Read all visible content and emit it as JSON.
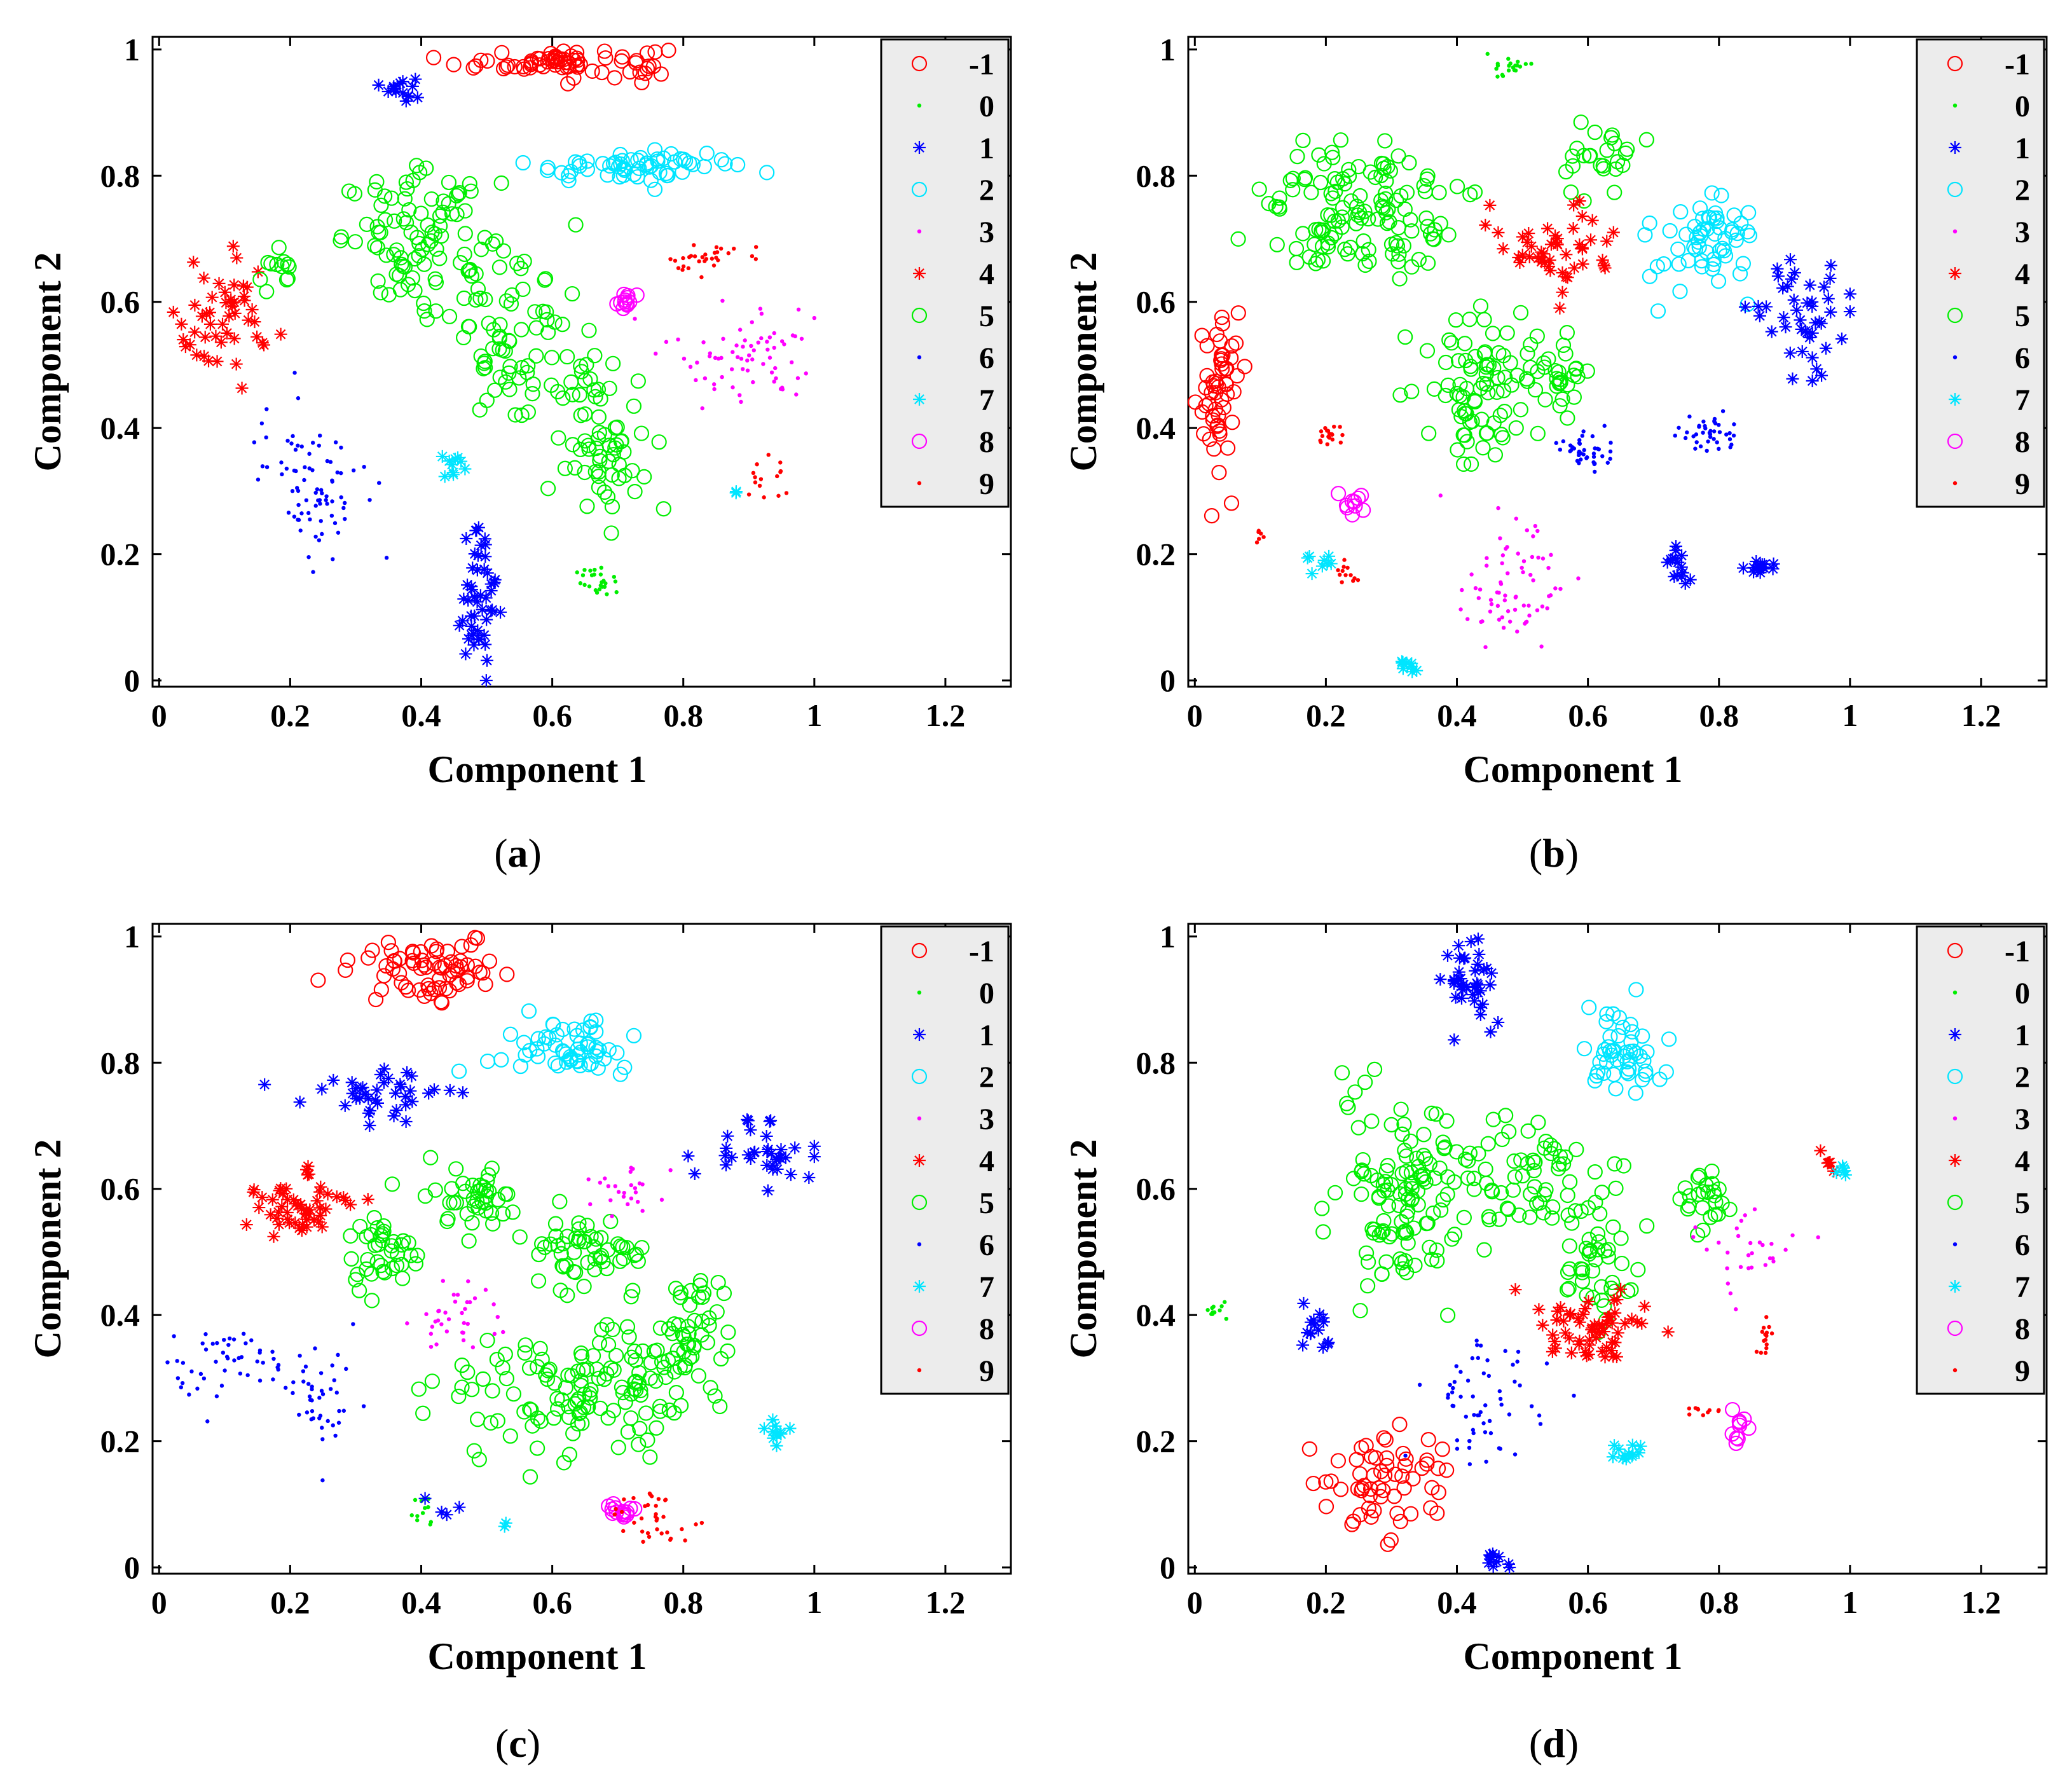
{
  "legend_colors": {
    "-1": "#ff0000",
    "0": "#00ee00",
    "1": "#0000ff",
    "2": "#00e5ff",
    "3": "#ff00ff",
    "4": "#ff0000",
    "5": "#00ee00",
    "6": "#0000ff",
    "7": "#00e5ff",
    "8": "#ff00ff",
    "9": "#ff0000"
  },
  "captions": [
    {
      "open": "(",
      "letter": "a",
      "close": ")"
    },
    {
      "open": "(",
      "letter": "b",
      "close": ")"
    },
    {
      "open": "(",
      "letter": "c",
      "close": ")"
    },
    {
      "open": "(",
      "letter": "d",
      "close": ")"
    }
  ],
  "chart_data": [
    {
      "type": "scatter",
      "panel": "a",
      "xlabel": "Component 1",
      "ylabel": "Component 2",
      "xlim": [
        -0.01,
        1.3
      ],
      "ylim": [
        -0.01,
        1.02
      ],
      "xticks": [
        "0",
        "0.2",
        "0.4",
        "0.6",
        "0.8",
        "1",
        "1.2"
      ],
      "xtick_values": [
        0,
        0.2,
        0.4,
        0.6,
        0.8,
        1.0,
        1.2
      ],
      "yticks": [
        "0",
        "0.2",
        "0.4",
        "0.6",
        "0.8",
        "1"
      ],
      "ytick_values": [
        0,
        0.2,
        0.4,
        0.6,
        0.8,
        1.0
      ],
      "legend": [
        "-1",
        "0",
        "1",
        "2",
        "3",
        "4",
        "5",
        "6",
        "7",
        "8",
        "9"
      ],
      "legend_position": "top-right",
      "clusters": [
        {
          "label": "-1",
          "cx": 0.62,
          "cy": 0.98,
          "sx": 0.08,
          "sy": 0.012,
          "n": 70
        },
        {
          "label": "1",
          "cx": 0.37,
          "cy": 0.94,
          "sx": 0.01,
          "sy": 0.01,
          "n": 15
        },
        {
          "label": "2",
          "cx": 0.72,
          "cy": 0.815,
          "sx": 0.08,
          "sy": 0.012,
          "n": 60
        },
        {
          "label": "5",
          "cx": 0.4,
          "cy": 0.7,
          "sx": 0.06,
          "sy": 0.05,
          "n": 90
        },
        {
          "label": "5",
          "cx": 0.55,
          "cy": 0.55,
          "sx": 0.05,
          "sy": 0.08,
          "n": 80
        },
        {
          "label": "5",
          "cx": 0.68,
          "cy": 0.38,
          "sx": 0.03,
          "sy": 0.06,
          "n": 60
        },
        {
          "label": "4",
          "cx": 0.1,
          "cy": 0.56,
          "sx": 0.04,
          "sy": 0.05,
          "n": 50
        },
        {
          "label": "5",
          "cx": 0.18,
          "cy": 0.65,
          "sx": 0.015,
          "sy": 0.015,
          "n": 12
        },
        {
          "label": "9",
          "cx": 0.83,
          "cy": 0.67,
          "sx": 0.03,
          "sy": 0.015,
          "n": 30
        },
        {
          "label": "8",
          "cx": 0.71,
          "cy": 0.6,
          "sx": 0.01,
          "sy": 0.008,
          "n": 12
        },
        {
          "label": "3",
          "cx": 0.9,
          "cy": 0.52,
          "sx": 0.06,
          "sy": 0.04,
          "n": 70
        },
        {
          "label": "6",
          "cx": 0.23,
          "cy": 0.32,
          "sx": 0.04,
          "sy": 0.06,
          "n": 80
        },
        {
          "label": "7",
          "cx": 0.45,
          "cy": 0.34,
          "sx": 0.01,
          "sy": 0.01,
          "n": 10
        },
        {
          "label": "1",
          "cx": 0.49,
          "cy": 0.13,
          "sx": 0.02,
          "sy": 0.07,
          "n": 50
        },
        {
          "label": "0",
          "cx": 0.67,
          "cy": 0.16,
          "sx": 0.015,
          "sy": 0.015,
          "n": 25
        },
        {
          "label": "9",
          "cx": 0.93,
          "cy": 0.31,
          "sx": 0.02,
          "sy": 0.015,
          "n": 15
        },
        {
          "label": "7",
          "cx": 0.88,
          "cy": 0.3,
          "sx": 0.003,
          "sy": 0.003,
          "n": 2
        }
      ]
    },
    {
      "type": "scatter",
      "panel": "b",
      "xlabel": "Component 1",
      "ylabel": "Component 2",
      "xlim": [
        -0.01,
        1.3
      ],
      "ylim": [
        -0.01,
        1.02
      ],
      "xticks": [
        "0",
        "0.2",
        "0.4",
        "0.6",
        "0.8",
        "1",
        "1.2"
      ],
      "xtick_values": [
        0,
        0.2,
        0.4,
        0.6,
        0.8,
        1.0,
        1.2
      ],
      "yticks": [
        "0",
        "0.2",
        "0.4",
        "0.6",
        "0.8",
        "1"
      ],
      "ytick_values": [
        0,
        0.2,
        0.4,
        0.6,
        0.8,
        1.0
      ],
      "legend": [
        "-1",
        "0",
        "1",
        "2",
        "3",
        "4",
        "5",
        "6",
        "7",
        "8",
        "9"
      ],
      "legend_position": "top-right",
      "clusters": [
        {
          "label": "0",
          "cx": 0.48,
          "cy": 0.97,
          "sx": 0.015,
          "sy": 0.008,
          "n": 20
        },
        {
          "label": "5",
          "cx": 0.26,
          "cy": 0.74,
          "sx": 0.07,
          "sy": 0.05,
          "n": 130
        },
        {
          "label": "5",
          "cx": 0.62,
          "cy": 0.83,
          "sx": 0.03,
          "sy": 0.03,
          "n": 25
        },
        {
          "label": "4",
          "cx": 0.55,
          "cy": 0.68,
          "sx": 0.05,
          "sy": 0.04,
          "n": 50
        },
        {
          "label": "2",
          "cx": 0.78,
          "cy": 0.7,
          "sx": 0.04,
          "sy": 0.04,
          "n": 60
        },
        {
          "label": "1",
          "cx": 0.92,
          "cy": 0.58,
          "sx": 0.04,
          "sy": 0.04,
          "n": 45
        },
        {
          "label": "-1",
          "cx": 0.04,
          "cy": 0.45,
          "sx": 0.015,
          "sy": 0.07,
          "n": 55
        },
        {
          "label": "5",
          "cx": 0.43,
          "cy": 0.45,
          "sx": 0.04,
          "sy": 0.07,
          "n": 80
        },
        {
          "label": "5",
          "cx": 0.55,
          "cy": 0.48,
          "sx": 0.02,
          "sy": 0.03,
          "n": 30
        },
        {
          "label": "9",
          "cx": 0.21,
          "cy": 0.39,
          "sx": 0.015,
          "sy": 0.015,
          "n": 18
        },
        {
          "label": "8",
          "cx": 0.24,
          "cy": 0.28,
          "sx": 0.01,
          "sy": 0.008,
          "n": 10
        },
        {
          "label": "3",
          "cx": 0.48,
          "cy": 0.15,
          "sx": 0.04,
          "sy": 0.05,
          "n": 70
        },
        {
          "label": "6",
          "cx": 0.6,
          "cy": 0.36,
          "sx": 0.02,
          "sy": 0.02,
          "n": 40
        },
        {
          "label": "6",
          "cx": 0.78,
          "cy": 0.39,
          "sx": 0.03,
          "sy": 0.015,
          "n": 40
        },
        {
          "label": "1",
          "cx": 0.74,
          "cy": 0.18,
          "sx": 0.01,
          "sy": 0.015,
          "n": 15
        },
        {
          "label": "1",
          "cx": 0.86,
          "cy": 0.18,
          "sx": 0.012,
          "sy": 0.008,
          "n": 15
        },
        {
          "label": "7",
          "cx": 0.33,
          "cy": 0.02,
          "sx": 0.01,
          "sy": 0.008,
          "n": 10
        },
        {
          "label": "7",
          "cx": 0.19,
          "cy": 0.19,
          "sx": 0.01,
          "sy": 0.008,
          "n": 8
        },
        {
          "label": "9",
          "cx": 0.23,
          "cy": 0.17,
          "sx": 0.01,
          "sy": 0.01,
          "n": 12
        },
        {
          "label": "9",
          "cx": 0.1,
          "cy": 0.23,
          "sx": 0.008,
          "sy": 0.008,
          "n": 6
        }
      ]
    },
    {
      "type": "scatter",
      "panel": "c",
      "xlabel": "Component 1",
      "ylabel": "Component 2",
      "xlim": [
        -0.01,
        1.3
      ],
      "ylim": [
        -0.01,
        1.02
      ],
      "xticks": [
        "0",
        "0.2",
        "0.4",
        "0.6",
        "0.8",
        "1",
        "1.2"
      ],
      "xtick_values": [
        0,
        0.2,
        0.4,
        0.6,
        0.8,
        1.0,
        1.2
      ],
      "yticks": [
        "0",
        "0.2",
        "0.4",
        "0.6",
        "0.8",
        "1"
      ],
      "ytick_values": [
        0,
        0.2,
        0.4,
        0.6,
        0.8,
        1.0
      ],
      "legend": [
        "-1",
        "0",
        "1",
        "2",
        "3",
        "4",
        "5",
        "6",
        "7",
        "8",
        "9"
      ],
      "legend_position": "top-right",
      "clusters": [
        {
          "label": "-1",
          "cx": 0.42,
          "cy": 0.94,
          "sx": 0.05,
          "sy": 0.025,
          "n": 70
        },
        {
          "label": "2",
          "cx": 0.62,
          "cy": 0.82,
          "sx": 0.06,
          "sy": 0.025,
          "n": 60
        },
        {
          "label": "1",
          "cx": 0.33,
          "cy": 0.75,
          "sx": 0.05,
          "sy": 0.02,
          "n": 40
        },
        {
          "label": "1",
          "cx": 0.91,
          "cy": 0.65,
          "sx": 0.04,
          "sy": 0.03,
          "n": 35
        },
        {
          "label": "4",
          "cx": 0.22,
          "cy": 0.57,
          "sx": 0.04,
          "sy": 0.03,
          "n": 55
        },
        {
          "label": "5",
          "cx": 0.34,
          "cy": 0.5,
          "sx": 0.03,
          "sy": 0.04,
          "n": 40
        },
        {
          "label": "5",
          "cx": 0.48,
          "cy": 0.58,
          "sx": 0.03,
          "sy": 0.03,
          "n": 40
        },
        {
          "label": "5",
          "cx": 0.66,
          "cy": 0.5,
          "sx": 0.05,
          "sy": 0.03,
          "n": 55
        },
        {
          "label": "5",
          "cx": 0.65,
          "cy": 0.28,
          "sx": 0.1,
          "sy": 0.05,
          "n": 140
        },
        {
          "label": "5",
          "cx": 0.81,
          "cy": 0.38,
          "sx": 0.03,
          "sy": 0.05,
          "n": 40
        },
        {
          "label": "3",
          "cx": 0.72,
          "cy": 0.6,
          "sx": 0.03,
          "sy": 0.02,
          "n": 25
        },
        {
          "label": "3",
          "cx": 0.45,
          "cy": 0.4,
          "sx": 0.04,
          "sy": 0.03,
          "n": 35
        },
        {
          "label": "6",
          "cx": 0.1,
          "cy": 0.33,
          "sx": 0.04,
          "sy": 0.03,
          "n": 45
        },
        {
          "label": "6",
          "cx": 0.24,
          "cy": 0.26,
          "sx": 0.03,
          "sy": 0.04,
          "n": 45
        },
        {
          "label": "8",
          "cx": 0.7,
          "cy": 0.09,
          "sx": 0.012,
          "sy": 0.006,
          "n": 15
        },
        {
          "label": "9",
          "cx": 0.76,
          "cy": 0.08,
          "sx": 0.03,
          "sy": 0.03,
          "n": 35
        },
        {
          "label": "7",
          "cx": 0.94,
          "cy": 0.21,
          "sx": 0.01,
          "sy": 0.01,
          "n": 10
        },
        {
          "label": "0",
          "cx": 0.4,
          "cy": 0.09,
          "sx": 0.01,
          "sy": 0.015,
          "n": 12
        },
        {
          "label": "1",
          "cx": 0.43,
          "cy": 0.1,
          "sx": 0.01,
          "sy": 0.02,
          "n": 4
        },
        {
          "label": "7",
          "cx": 0.53,
          "cy": 0.07,
          "sx": 0.003,
          "sy": 0.003,
          "n": 2
        }
      ]
    },
    {
      "type": "scatter",
      "panel": "d",
      "xlabel": "Component 1",
      "ylabel": "Component 2",
      "xlim": [
        -0.01,
        1.3
      ],
      "ylim": [
        -0.01,
        1.02
      ],
      "xticks": [
        "0",
        "0.2",
        "0.4",
        "0.6",
        "0.8",
        "1",
        "1.2"
      ],
      "xtick_values": [
        0,
        0.2,
        0.4,
        0.6,
        0.8,
        1.0,
        1.2
      ],
      "yticks": [
        "0",
        "0.2",
        "0.4",
        "0.6",
        "0.8",
        "1"
      ],
      "ytick_values": [
        0,
        0.2,
        0.4,
        0.6,
        0.8,
        1.0
      ],
      "legend": [
        "-1",
        "0",
        "1",
        "2",
        "3",
        "4",
        "5",
        "6",
        "7",
        "8",
        "9"
      ],
      "legend_position": "top-right",
      "clusters": [
        {
          "label": "1",
          "cx": 0.42,
          "cy": 0.92,
          "sx": 0.02,
          "sy": 0.04,
          "n": 40
        },
        {
          "label": "2",
          "cx": 0.65,
          "cy": 0.81,
          "sx": 0.03,
          "sy": 0.03,
          "n": 50
        },
        {
          "label": "5",
          "cx": 0.32,
          "cy": 0.59,
          "sx": 0.06,
          "sy": 0.08,
          "n": 130
        },
        {
          "label": "5",
          "cx": 0.53,
          "cy": 0.62,
          "sx": 0.06,
          "sy": 0.04,
          "n": 60
        },
        {
          "label": "5",
          "cx": 0.62,
          "cy": 0.47,
          "sx": 0.03,
          "sy": 0.05,
          "n": 40
        },
        {
          "label": "4",
          "cx": 0.62,
          "cy": 0.38,
          "sx": 0.05,
          "sy": 0.03,
          "n": 60
        },
        {
          "label": "5",
          "cx": 0.78,
          "cy": 0.58,
          "sx": 0.02,
          "sy": 0.03,
          "n": 25
        },
        {
          "label": "3",
          "cx": 0.85,
          "cy": 0.5,
          "sx": 0.05,
          "sy": 0.03,
          "n": 30
        },
        {
          "label": "0",
          "cx": 0.03,
          "cy": 0.41,
          "sx": 0.01,
          "sy": 0.012,
          "n": 12
        },
        {
          "label": "1",
          "cx": 0.18,
          "cy": 0.38,
          "sx": 0.012,
          "sy": 0.02,
          "n": 15
        },
        {
          "label": "6",
          "cx": 0.45,
          "cy": 0.26,
          "sx": 0.05,
          "sy": 0.05,
          "n": 60
        },
        {
          "label": "-1",
          "cx": 0.3,
          "cy": 0.14,
          "sx": 0.05,
          "sy": 0.04,
          "n": 60
        },
        {
          "label": "1",
          "cx": 0.46,
          "cy": 0.01,
          "sx": 0.008,
          "sy": 0.008,
          "n": 10
        },
        {
          "label": "7",
          "cx": 0.66,
          "cy": 0.18,
          "sx": 0.015,
          "sy": 0.008,
          "n": 12
        },
        {
          "label": "8",
          "cx": 0.83,
          "cy": 0.22,
          "sx": 0.01,
          "sy": 0.015,
          "n": 10
        },
        {
          "label": "9",
          "cx": 0.87,
          "cy": 0.36,
          "sx": 0.01,
          "sy": 0.02,
          "n": 15
        },
        {
          "label": "4",
          "cx": 0.97,
          "cy": 0.64,
          "sx": 0.008,
          "sy": 0.008,
          "n": 5
        },
        {
          "label": "7",
          "cx": 0.99,
          "cy": 0.63,
          "sx": 0.006,
          "sy": 0.006,
          "n": 5
        },
        {
          "label": "9",
          "cx": 0.77,
          "cy": 0.25,
          "sx": 0.02,
          "sy": 0.006,
          "n": 10
        }
      ]
    }
  ]
}
